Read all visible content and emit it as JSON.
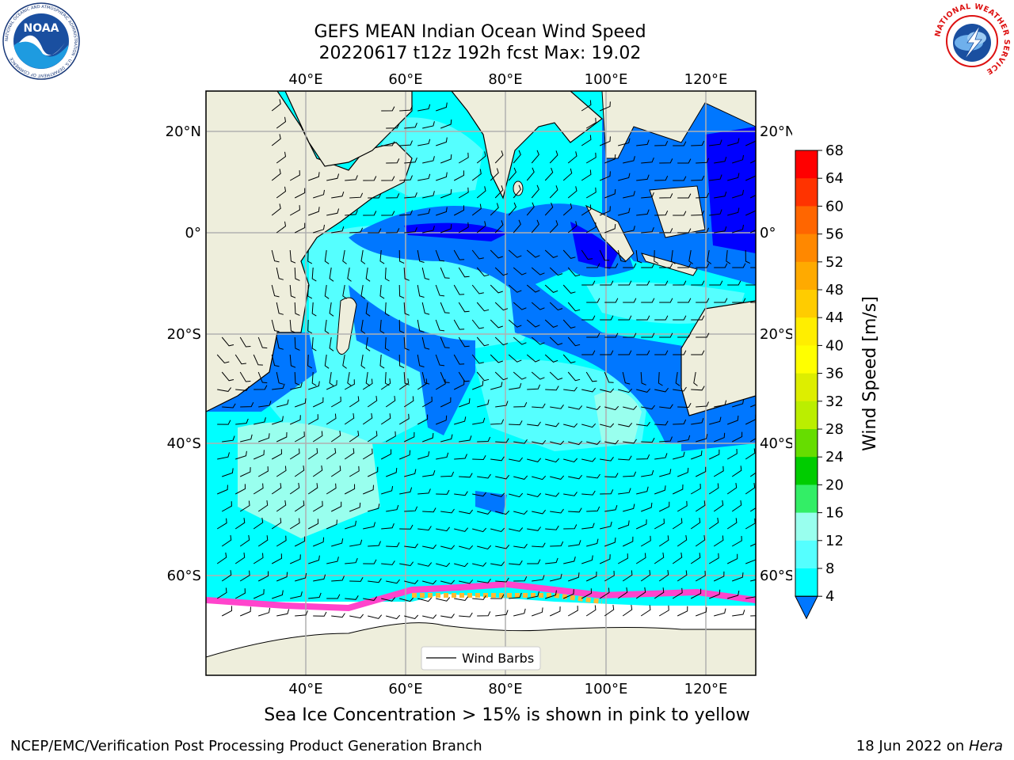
{
  "title_line1": "GEFS MEAN Indian Ocean Wind Speed",
  "title_line2": "20220617 t12z 192h fcst   Max: 19.02",
  "map": {
    "top_lon_labels": [
      "40°E",
      "60°E",
      "80°E",
      "100°E",
      "120°E"
    ],
    "bottom_lon_labels": [
      "40°E",
      "60°E",
      "80°E",
      "100°E",
      "120°E"
    ],
    "left_lat_labels": [
      "20°N",
      "0°",
      "20°S",
      "40°S",
      "60°S"
    ],
    "right_lat_labels": [
      "20°N",
      "0°",
      "20°S",
      "40°S",
      "60°S"
    ],
    "legend_label": "Wind Barbs",
    "colors": {
      "land": "#eeeedc",
      "ice_free": "#ffffff",
      "grid": "#b0b0b0"
    }
  },
  "colorbar": {
    "label": "Wind Speed [m/s]",
    "ticks": [
      "68",
      "64",
      "60",
      "56",
      "52",
      "48",
      "44",
      "40",
      "36",
      "32",
      "28",
      "24",
      "20",
      "16",
      "12",
      "8",
      "4"
    ],
    "colors": [
      "#ff0000",
      "#ff3300",
      "#ff6600",
      "#ff8800",
      "#ffaa00",
      "#ffcc00",
      "#ffee00",
      "#ffff00",
      "#ddee00",
      "#bbee00",
      "#66dd00",
      "#00cc00",
      "#33ee66",
      "#99ffee",
      "#55ffff",
      "#00ffff",
      "#0077ff",
      "#0000ff"
    ]
  },
  "sea_ice_note": "Sea Ice Concentration > 15% is shown in pink to yellow",
  "footer": {
    "left": "NCEP/EMC/Verification Post Processing Product Generation Branch",
    "right_date": "18 Jun 2022 on ",
    "right_host": "Hera"
  },
  "logos": {
    "noaa_text": "NOAA",
    "noaa_ring_text": "NATIONAL OCEANIC AND ATMOSPHERIC ADMINISTRATION · U.S. DEPARTMENT OF COMMERCE",
    "nws_ring_text": "NATIONAL WEATHER SERVICE"
  }
}
